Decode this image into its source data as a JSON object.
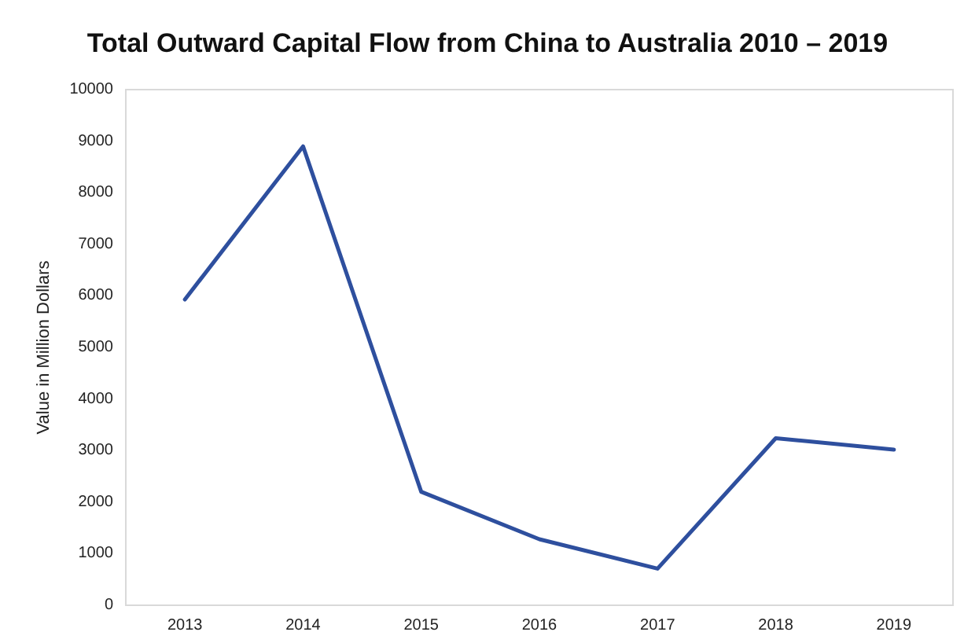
{
  "chart_data": {
    "type": "line",
    "title": "Total Outward Capital Flow from China to Australia 2010 – 2019",
    "ylabel": "Value in Million Dollars",
    "categories": [
      "2013",
      "2014",
      "2015",
      "2016",
      "2017",
      "2018",
      "2019"
    ],
    "series": [
      {
        "color": "#2e4f9e",
        "values": [
          5930,
          8900,
          2200,
          1280,
          710,
          3240,
          3020
        ]
      }
    ],
    "ylim": [
      0,
      10000
    ],
    "yticks": [
      0,
      1000,
      2000,
      3000,
      4000,
      5000,
      6000,
      7000,
      8000,
      9000,
      10000
    ],
    "grid": false,
    "marker": "none",
    "line_style": "solid"
  }
}
